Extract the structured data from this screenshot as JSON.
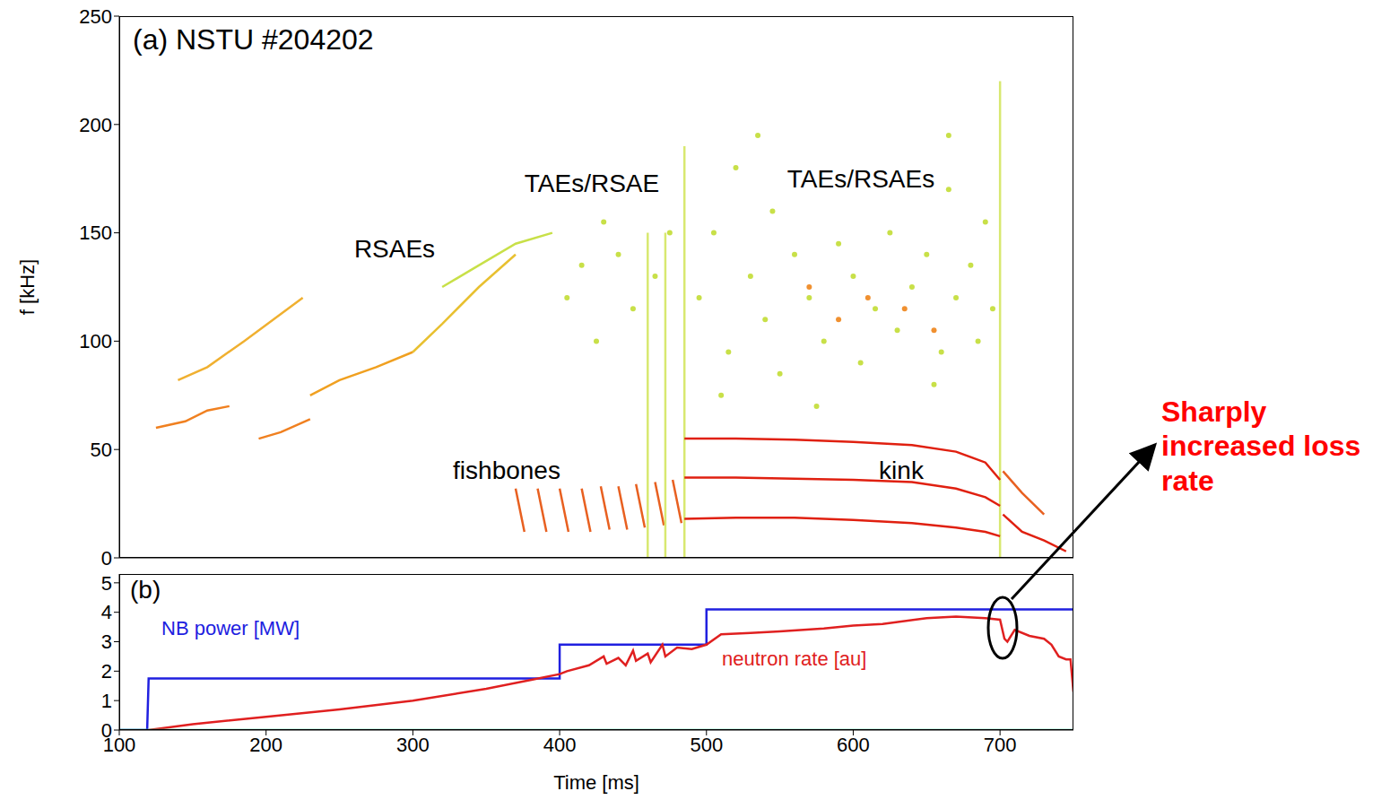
{
  "chart_data": [
    {
      "type": "line",
      "title": "(a) NSTU #204202",
      "y_label": "f [kHz]",
      "xlim": [
        100,
        750
      ],
      "xticks": [
        100,
        200,
        300,
        400,
        500,
        600,
        700
      ],
      "ylim": [
        0,
        250
      ],
      "yticks": [
        0,
        50,
        100,
        150,
        200,
        250
      ],
      "tick_labels": "y",
      "annotations": [
        "RSAEs",
        "TAEs/RSAE",
        "TAEs/RSAEs",
        "fishbones",
        "kink"
      ],
      "series": [
        {
          "color": "#f08020",
          "x": [
            125,
            145,
            160,
            175
          ],
          "values": [
            60,
            63,
            68,
            70
          ]
        },
        {
          "color": "#f0b030",
          "x": [
            140,
            160,
            185,
            205,
            225
          ],
          "values": [
            82,
            88,
            100,
            110,
            120
          ]
        },
        {
          "color": "#f08020",
          "x": [
            195,
            210,
            230
          ],
          "values": [
            55,
            58,
            64
          ]
        },
        {
          "color": "#f0a020",
          "x": [
            230,
            250,
            275,
            300
          ],
          "values": [
            75,
            82,
            88,
            95
          ]
        },
        {
          "color": "#e8c030",
          "x": [
            300,
            320,
            345,
            370
          ],
          "values": [
            95,
            108,
            125,
            140
          ]
        },
        {
          "color": "#c8e048",
          "x": [
            320,
            340,
            370,
            395
          ],
          "values": [
            125,
            133,
            145,
            150
          ]
        },
        {
          "color": "#e86020",
          "x": [
            370,
            376
          ],
          "values": [
            32,
            12
          ]
        },
        {
          "color": "#e86020",
          "x": [
            385,
            391
          ],
          "values": [
            32,
            12
          ]
        },
        {
          "color": "#e86020",
          "x": [
            400,
            406
          ],
          "values": [
            32,
            12
          ]
        },
        {
          "color": "#e86020",
          "x": [
            415,
            421
          ],
          "values": [
            32,
            12
          ]
        },
        {
          "color": "#e86020",
          "x": [
            428,
            434
          ],
          "values": [
            33,
            13
          ]
        },
        {
          "color": "#e86020",
          "x": [
            440,
            446
          ],
          "values": [
            33,
            13
          ]
        },
        {
          "color": "#e86020",
          "x": [
            452,
            458
          ],
          "values": [
            34,
            14
          ]
        },
        {
          "color": "#e86020",
          "x": [
            465,
            471
          ],
          "values": [
            35,
            15
          ]
        },
        {
          "color": "#e86020",
          "x": [
            477,
            483
          ],
          "values": [
            36,
            16
          ]
        },
        {
          "color": "#d8e870",
          "x": [
            460,
            460
          ],
          "values": [
            0,
            150
          ]
        },
        {
          "color": "#d8e870",
          "x": [
            472,
            472
          ],
          "values": [
            0,
            150
          ]
        },
        {
          "color": "#d8e870",
          "x": [
            485,
            485
          ],
          "values": [
            0,
            190
          ]
        },
        {
          "color": "#d8e870",
          "x": [
            700,
            700
          ],
          "values": [
            0,
            220
          ]
        },
        {
          "color": "#e02010",
          "x": [
            485,
            520,
            560,
            600,
            640,
            670,
            690,
            700
          ],
          "values": [
            18,
            18.5,
            18.5,
            17.5,
            16,
            14,
            12,
            10
          ]
        },
        {
          "color": "#e02010",
          "x": [
            485,
            520,
            560,
            600,
            640,
            670,
            690,
            700
          ],
          "values": [
            37,
            37,
            36.5,
            36,
            35,
            32,
            28,
            24
          ]
        },
        {
          "color": "#e02010",
          "x": [
            485,
            520,
            560,
            600,
            640,
            670,
            690,
            700
          ],
          "values": [
            55,
            55,
            54.5,
            53.5,
            52,
            49,
            44,
            36
          ]
        },
        {
          "color": "#e02010",
          "x": [
            702,
            715,
            730,
            745
          ],
          "values": [
            20,
            12,
            8,
            3
          ]
        },
        {
          "color": "#e86020",
          "x": [
            702,
            715,
            730
          ],
          "values": [
            40,
            30,
            20
          ]
        },
        {
          "type": "scatter",
          "color": "#c8e048",
          "x": [
            495,
            505,
            515,
            520,
            530,
            540,
            545,
            550,
            560,
            570,
            580,
            590,
            600,
            605,
            615,
            625,
            630,
            640,
            650,
            660,
            665,
            670,
            680,
            685,
            690,
            695,
            510,
            575,
            655,
            535,
            665,
            405,
            415,
            425,
            440,
            450,
            465,
            475,
            430
          ],
          "values": [
            120,
            150,
            95,
            180,
            130,
            110,
            160,
            85,
            140,
            120,
            100,
            145,
            130,
            90,
            115,
            150,
            105,
            125,
            140,
            95,
            170,
            120,
            135,
            100,
            155,
            115,
            75,
            70,
            80,
            195,
            195,
            120,
            135,
            100,
            140,
            115,
            130,
            150,
            155
          ]
        },
        {
          "type": "scatter",
          "color": "#f09030",
          "x": [
            570,
            590,
            610,
            635,
            655
          ],
          "values": [
            125,
            110,
            120,
            115,
            105
          ]
        }
      ]
    },
    {
      "type": "line",
      "title": "(b)",
      "x_label": "Time [ms]",
      "xlim": [
        100,
        750
      ],
      "xticks": [
        100,
        200,
        300,
        400,
        500,
        600,
        700
      ],
      "ylim": [
        0,
        5.3
      ],
      "yticks": [
        0,
        1,
        2,
        3,
        4,
        5
      ],
      "annotations": [
        "Sharply increased loss rate"
      ],
      "series": [
        {
          "name": "NB power [MW]",
          "color": "#2020e0",
          "x": [
            100,
            119,
            120,
            400,
            400,
            500,
            500,
            750
          ],
          "values": [
            0,
            0,
            1.75,
            1.75,
            2.9,
            2.9,
            4.1,
            4.1
          ]
        },
        {
          "name": "neutron rate [au]",
          "color": "#e02020",
          "x": [
            120,
            150,
            200,
            250,
            300,
            350,
            380,
            400,
            405,
            420,
            430,
            432,
            440,
            445,
            450,
            452,
            460,
            462,
            470,
            472,
            480,
            490,
            500,
            510,
            530,
            550,
            580,
            600,
            620,
            650,
            670,
            690,
            700,
            703,
            705,
            710,
            720,
            730,
            735,
            740,
            745,
            748,
            750
          ],
          "values": [
            0,
            0.2,
            0.45,
            0.7,
            1.0,
            1.4,
            1.7,
            1.9,
            2.0,
            2.2,
            2.5,
            2.25,
            2.45,
            2.2,
            2.7,
            2.35,
            2.6,
            2.3,
            2.9,
            2.5,
            2.8,
            2.75,
            2.9,
            3.25,
            3.3,
            3.35,
            3.45,
            3.55,
            3.6,
            3.8,
            3.85,
            3.8,
            3.75,
            3.1,
            3.0,
            3.4,
            3.2,
            3.1,
            2.9,
            2.5,
            2.4,
            2.4,
            1.3
          ]
        },
        {
          "color": "#30e0a0",
          "x": [
            100,
            750
          ],
          "values": [
            0,
            0
          ]
        }
      ]
    }
  ]
}
